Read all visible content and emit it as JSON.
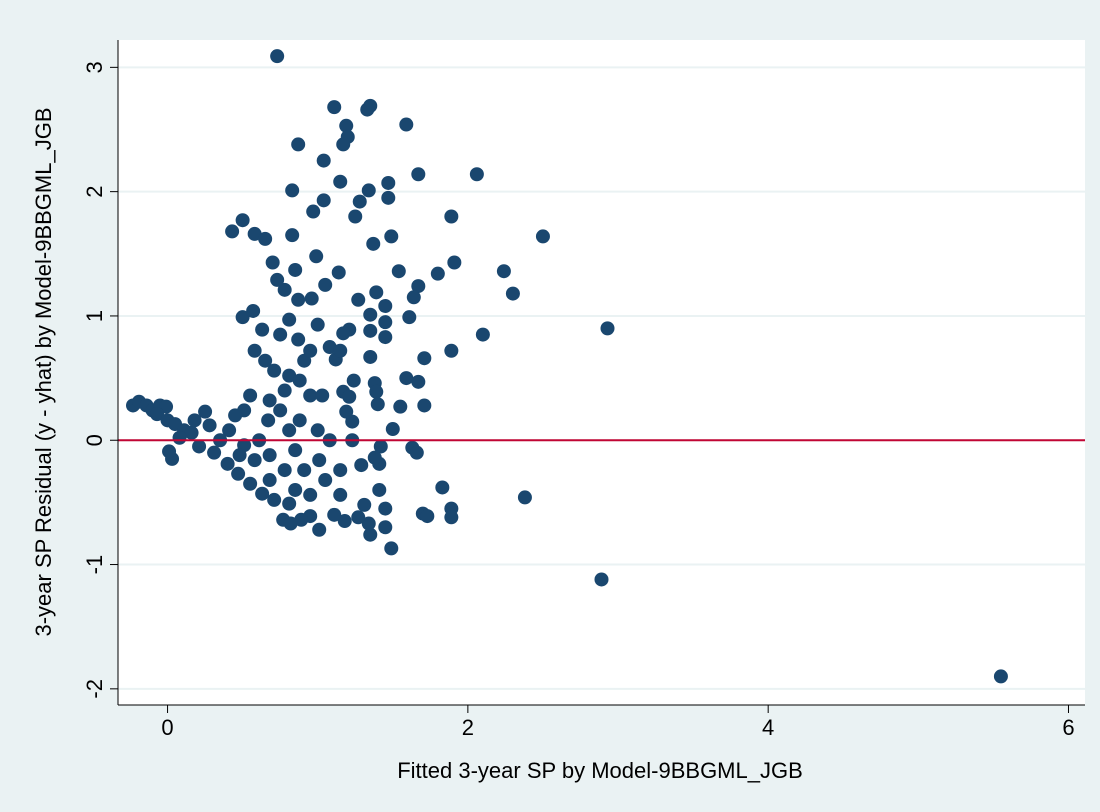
{
  "chart_data": {
    "type": "scatter",
    "x_label": "Fitted 3-year SP by Model-9BBGML_JGB",
    "y_label": "3-year SP Residual (y - yhat) by Model-9BBGML_JGB",
    "color": "#1a476f",
    "grid": true,
    "refline": 0,
    "refline_color": "#c10534",
    "xlim": [
      -0.33,
      6.11
    ],
    "ylim": [
      -2.13,
      3.22
    ],
    "xticks": [
      0,
      2,
      4,
      6
    ],
    "yticks": [
      -2,
      -1,
      0,
      1,
      2,
      3
    ],
    "x": [
      0.73,
      5.55,
      2.89,
      2.93,
      2.5,
      2.06,
      2.24,
      2.3,
      2.1,
      2.38,
      1.89,
      1.91,
      1.89,
      1.8,
      1.67,
      1.59,
      1.35,
      1.33,
      1.11,
      1.19,
      1.2,
      1.17,
      0.87,
      1.04,
      1.15,
      1.47,
      1.34,
      0.83,
      1.04,
      1.28,
      1.47,
      1.25,
      0.97,
      0.5,
      0.43,
      0.58,
      0.65,
      0.83,
      1.37,
      1.49,
      0.99,
      0.7,
      1.54,
      0.85,
      1.14,
      1.27,
      1.39,
      1.67,
      1.64,
      1.61,
      1.45,
      0.96,
      0.5,
      0.57,
      1.35,
      1.45,
      1.45,
      1.35,
      1.21,
      1.35,
      1.71,
      1.59,
      1.67,
      1.38,
      1.39,
      1.55,
      1.4,
      1.71,
      1.24,
      1.17,
      1.21,
      1.5,
      1.63,
      1.66,
      1.83,
      1.7,
      1.73,
      1.89,
      1.89,
      1.49,
      1.45,
      1.45,
      1.35,
      1.34,
      1.31,
      1.27,
      1.18,
      1.11,
      1.01,
      0.95,
      0.89,
      0.77,
      0.82,
      1.41,
      1.41,
      1.42,
      1.38,
      1.29,
      1.23,
      1.23,
      1.19,
      1.17,
      1.12,
      -0.23,
      -0.19,
      -0.14,
      -0.1,
      -0.05,
      -0.01,
      -0.07,
      0.0,
      0.05,
      0.11,
      0.16,
      0.25,
      0.03,
      0.01,
      0.08,
      0.21,
      0.31,
      0.4,
      0.47,
      0.55,
      0.63,
      0.71,
      0.81,
      0.41,
      0.51,
      0.61,
      0.58,
      0.67,
      0.75,
      0.78,
      0.71,
      0.65,
      0.58,
      0.81,
      0.88,
      0.91,
      0.95,
      0.88,
      0.85,
      0.78,
      0.91,
      1.01,
      1.08,
      1.0,
      1.05,
      1.15,
      1.15,
      0.95,
      0.85,
      0.68,
      0.68,
      0.51,
      0.35,
      0.28,
      0.45,
      0.55,
      0.63,
      0.75,
      0.81,
      0.87,
      0.95,
      1.0,
      1.08,
      0.78,
      0.73,
      0.87,
      1.05,
      1.15,
      1.03,
      0.68,
      0.81,
      0.48,
      0.18
    ],
    "values": [
      3.09,
      -1.9,
      -1.12,
      0.9,
      1.64,
      2.14,
      1.36,
      1.18,
      0.85,
      -0.46,
      0.72,
      1.43,
      1.8,
      1.34,
      2.14,
      2.54,
      2.69,
      2.66,
      2.68,
      2.53,
      2.44,
      2.38,
      2.38,
      2.25,
      2.08,
      2.07,
      2.01,
      2.01,
      1.93,
      1.92,
      1.95,
      1.8,
      1.84,
      1.77,
      1.68,
      1.66,
      1.62,
      1.65,
      1.58,
      1.64,
      1.48,
      1.43,
      1.36,
      1.37,
      1.35,
      1.13,
      1.19,
      1.24,
      1.15,
      0.99,
      1.08,
      1.14,
      0.99,
      1.04,
      1.01,
      0.95,
      0.83,
      0.88,
      0.89,
      0.67,
      0.66,
      0.5,
      0.47,
      0.46,
      0.39,
      0.27,
      0.29,
      0.28,
      0.48,
      0.39,
      0.35,
      0.09,
      -0.06,
      -0.1,
      -0.38,
      -0.59,
      -0.61,
      -0.55,
      -0.62,
      -0.87,
      -0.7,
      -0.55,
      -0.76,
      -0.67,
      -0.52,
      -0.62,
      -0.65,
      -0.6,
      -0.72,
      -0.61,
      -0.64,
      -0.64,
      -0.67,
      -0.4,
      -0.19,
      -0.05,
      -0.14,
      -0.2,
      0.0,
      0.15,
      0.23,
      0.86,
      0.65,
      0.28,
      0.31,
      0.28,
      0.24,
      0.28,
      0.27,
      0.21,
      0.16,
      0.13,
      0.08,
      0.06,
      0.23,
      -0.15,
      -0.09,
      0.02,
      -0.05,
      -0.1,
      -0.19,
      -0.27,
      -0.35,
      -0.43,
      -0.48,
      -0.51,
      0.08,
      0.24,
      0.0,
      -0.16,
      0.16,
      0.24,
      0.4,
      0.56,
      0.64,
      0.72,
      0.52,
      0.48,
      0.64,
      0.36,
      0.16,
      -0.08,
      -0.24,
      -0.24,
      -0.16,
      0.0,
      0.08,
      -0.32,
      -0.24,
      -0.44,
      -0.44,
      -0.4,
      -0.32,
      -0.12,
      -0.04,
      0.0,
      0.12,
      0.2,
      0.36,
      0.89,
      0.85,
      0.97,
      0.81,
      0.72,
      0.93,
      0.75,
      1.21,
      1.29,
      1.13,
      1.25,
      0.72,
      0.36,
      0.32,
      0.08,
      -0.12,
      0.16
    ]
  }
}
